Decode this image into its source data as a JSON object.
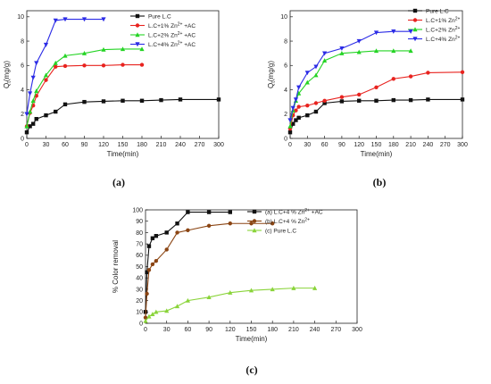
{
  "chart_data": [
    {
      "type": "line",
      "panel": "a",
      "caption": "(a)",
      "xlabel": "Time(min)",
      "ylabel": "Q_t (mg/g)",
      "xlim": [
        0,
        300
      ],
      "ylim": [
        0,
        10.5
      ],
      "xticks": [
        0,
        30,
        60,
        90,
        120,
        150,
        180,
        210,
        240,
        270,
        300
      ],
      "yticks": [
        0,
        2,
        4,
        6,
        8,
        10
      ],
      "legend_position": "top-right",
      "series": [
        {
          "name": "Pure L.C",
          "color": "#111111",
          "marker": "square",
          "x": [
            0,
            5,
            10,
            15,
            30,
            45,
            60,
            90,
            120,
            150,
            180,
            210,
            240,
            300
          ],
          "y": [
            0.5,
            1.0,
            1.2,
            1.6,
            1.9,
            2.2,
            2.8,
            3.0,
            3.05,
            3.1,
            3.1,
            3.15,
            3.2,
            3.2
          ]
        },
        {
          "name": "L.C+1% Zn2+ +AC",
          "color": "#e8231f",
          "marker": "circle",
          "x": [
            0,
            5,
            10,
            15,
            30,
            45,
            60,
            90,
            120,
            150,
            180
          ],
          "y": [
            1.0,
            2.1,
            2.7,
            3.5,
            4.8,
            5.9,
            5.95,
            6.0,
            6.0,
            6.05,
            6.05
          ]
        },
        {
          "name": "L.C+2% Zn2+ +AC",
          "color": "#25d425",
          "marker": "triangle-up",
          "x": [
            0,
            5,
            10,
            15,
            30,
            45,
            60,
            90,
            120,
            150,
            180
          ],
          "y": [
            1.0,
            2.2,
            3.1,
            3.9,
            5.2,
            6.2,
            6.8,
            7.0,
            7.3,
            7.35,
            7.35
          ]
        },
        {
          "name": "L.C+4% Zn2+ +AC",
          "color": "#2b2be6",
          "marker": "triangle-down",
          "x": [
            0,
            5,
            10,
            15,
            30,
            45,
            60,
            90,
            120
          ],
          "y": [
            2.0,
            3.7,
            5.0,
            6.2,
            7.7,
            9.7,
            9.8,
            9.8,
            9.8
          ]
        }
      ]
    },
    {
      "type": "line",
      "panel": "b",
      "caption": "(b)",
      "xlabel": "Time(min)",
      "ylabel": "Q_t (mg/g)",
      "xlim": [
        0,
        300
      ],
      "ylim": [
        0,
        10.5
      ],
      "xticks": [
        0,
        30,
        60,
        90,
        120,
        150,
        180,
        210,
        240,
        270,
        300
      ],
      "yticks": [
        0,
        2,
        4,
        6,
        8,
        10
      ],
      "legend_position": "top-right",
      "series": [
        {
          "name": "Pure L.C",
          "color": "#111111",
          "marker": "square",
          "x": [
            0,
            5,
            10,
            15,
            30,
            45,
            60,
            90,
            120,
            150,
            180,
            210,
            240,
            300
          ],
          "y": [
            0.5,
            1.2,
            1.5,
            1.7,
            1.9,
            2.2,
            2.9,
            3.05,
            3.1,
            3.1,
            3.15,
            3.15,
            3.2,
            3.2
          ]
        },
        {
          "name": "L.C+1% Zn2+",
          "color": "#e8231f",
          "marker": "circle",
          "x": [
            0,
            5,
            10,
            15,
            30,
            45,
            60,
            90,
            120,
            150,
            180,
            210,
            240,
            300
          ],
          "y": [
            0.8,
            1.9,
            2.3,
            2.6,
            2.7,
            2.9,
            3.1,
            3.4,
            3.6,
            4.2,
            4.9,
            5.1,
            5.4,
            5.45
          ]
        },
        {
          "name": "L.C+2% Zn2+",
          "color": "#25d425",
          "marker": "triangle-up",
          "x": [
            0,
            5,
            10,
            15,
            30,
            45,
            60,
            90,
            120,
            150,
            180,
            210
          ],
          "y": [
            1.0,
            2.3,
            3.1,
            3.7,
            4.6,
            5.2,
            6.4,
            7.0,
            7.1,
            7.2,
            7.2,
            7.2
          ]
        },
        {
          "name": "L.C+4% Zn2+",
          "color": "#2b2be6",
          "marker": "triangle-down",
          "x": [
            0,
            5,
            10,
            15,
            30,
            45,
            60,
            90,
            120,
            150,
            180,
            210
          ],
          "y": [
            1.5,
            2.5,
            3.2,
            4.2,
            5.4,
            5.9,
            7.0,
            7.4,
            8.0,
            8.7,
            8.8,
            8.8
          ]
        }
      ]
    },
    {
      "type": "line",
      "panel": "c",
      "caption": "(c)",
      "xlabel": "Time(min)",
      "ylabel": "% Color removal",
      "xlim": [
        0,
        300
      ],
      "ylim": [
        0,
        100
      ],
      "xticks": [
        0,
        30,
        60,
        90,
        120,
        150,
        180,
        210,
        240,
        270,
        300
      ],
      "yticks": [
        0,
        10,
        20,
        30,
        40,
        50,
        60,
        70,
        80,
        90,
        100
      ],
      "legend_position": "top-right",
      "series": [
        {
          "name": "(a) L.C+4 % Zn2+ +AC",
          "color": "#111111",
          "marker": "square",
          "x": [
            0,
            2,
            5,
            10,
            15,
            30,
            45,
            60,
            90,
            120
          ],
          "y": [
            10,
            45,
            68,
            75,
            77,
            80,
            88,
            98,
            98,
            98
          ]
        },
        {
          "name": "(b) L.C+4 % Zn2+",
          "color": "#8b4513",
          "marker": "circle",
          "x": [
            0,
            2,
            5,
            10,
            15,
            30,
            45,
            60,
            90,
            120,
            150,
            180
          ],
          "y": [
            5,
            26,
            47,
            52,
            55,
            65,
            80,
            82,
            86,
            88,
            88,
            88
          ]
        },
        {
          "name": "(c) Pure L.C",
          "color": "#8ad43a",
          "marker": "triangle-up",
          "x": [
            0,
            5,
            10,
            15,
            30,
            45,
            60,
            90,
            120,
            150,
            180,
            210,
            240
          ],
          "y": [
            2,
            6,
            8,
            10,
            11,
            15,
            20,
            23,
            27,
            29,
            30,
            31,
            31
          ]
        }
      ]
    }
  ]
}
